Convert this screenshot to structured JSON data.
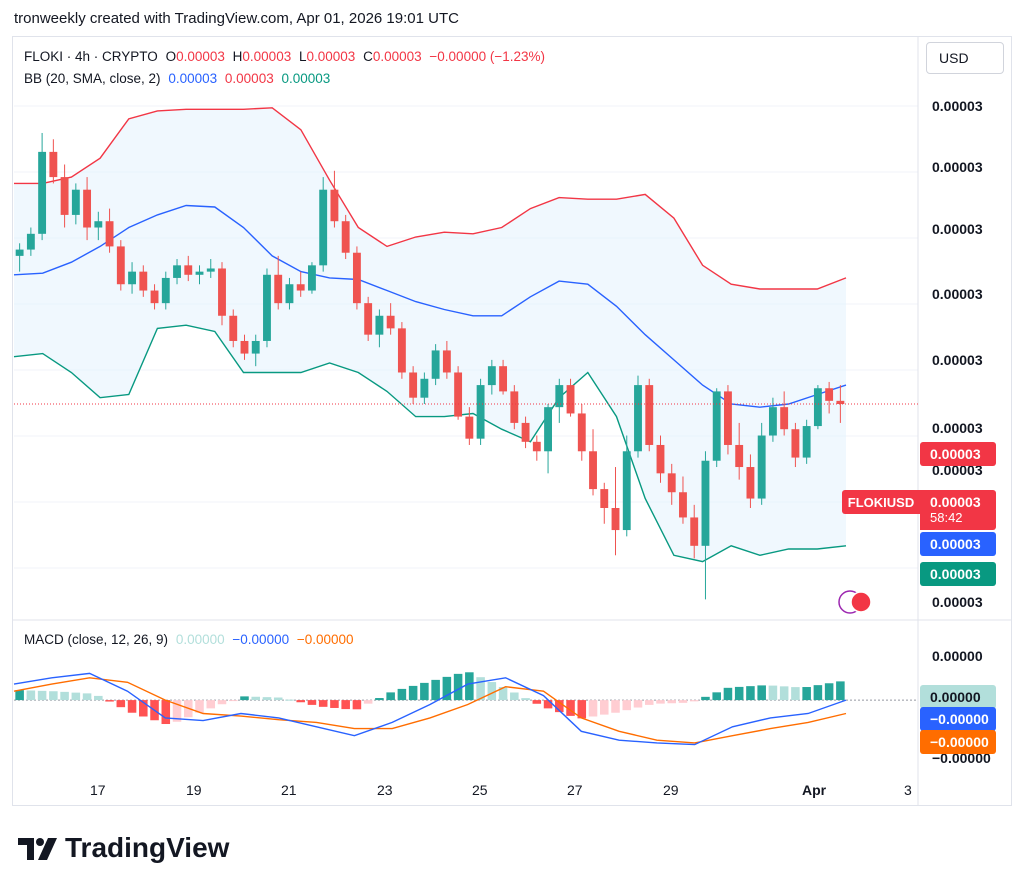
{
  "header": {
    "caption": "tronweekly created with TradingView.com, Apr 01, 2026 19:01 UTC"
  },
  "legend": {
    "symbol": "FLOKI · 4h · CRYPTO",
    "o_label": "O",
    "o_value": "0.00003",
    "h_label": "H",
    "h_value": "0.00003",
    "l_label": "L",
    "l_value": "0.00003",
    "c_label": "C",
    "c_value": "0.00003",
    "change": "−0.00000 (−1.23%)",
    "bb_label": "BB (20, SMA, close, 2)",
    "bb_basis": "0.00003",
    "bb_upper": "0.00003",
    "bb_lower": "0.00003",
    "macd_label": "MACD (close, 12, 26, 9)",
    "macd_hist": "0.00000",
    "macd_line": "−0.00000",
    "macd_signal": "−0.00000"
  },
  "toolbar": {
    "currency": "USD"
  },
  "price_axis": [
    "0.00003",
    "0.00003",
    "0.00003",
    "0.00003",
    "0.00003",
    "0.00003",
    "0.00003",
    "0.00003"
  ],
  "price_tags": {
    "upper": "0.00003",
    "symbol": "FLOKIUSD",
    "last": "0.00003",
    "countdown": "58:42",
    "basis": "0.00003",
    "lower": "0.00003"
  },
  "macd_axis": [
    "0.00000",
    "−0.00000"
  ],
  "macd_tags": {
    "hist": "0.00000",
    "macd": "−0.00000",
    "signal": "−0.00000"
  },
  "time_axis": [
    "17",
    "19",
    "21",
    "23",
    "25",
    "27",
    "29",
    "Apr",
    "3"
  ],
  "brand": {
    "name": "TradingView"
  },
  "colors": {
    "up": "#26a69a",
    "down": "#ef5350",
    "basis": "#2962ff",
    "upper": "#f23645",
    "lower": "#089981",
    "macd": "#2962ff",
    "signal": "#ff6d00",
    "hist_up_strong": "#26a69a",
    "hist_up_weak": "#b2dfdb",
    "hist_down_strong": "#ff5252",
    "hist_down_weak": "#ffcdd2"
  },
  "chart_data": {
    "type": "candlestick",
    "title": "FLOKI · 4h · CRYPTO",
    "x_ticks": [
      "17",
      "19",
      "21",
      "23",
      "25",
      "27",
      "29",
      "Apr",
      "3"
    ],
    "series": [
      {
        "name": "BB upper",
        "values": [
          7e-05,
          7e-05,
          7.2e-05,
          7.8e-05,
          9.05e-05,
          9.3e-05,
          9.35e-05,
          9.35e-05,
          9.35e-05,
          9.4e-05,
          8.7e-05,
          7.1e-05,
          5.6e-05,
          5e-05,
          5.3e-05,
          5.45e-05,
          5.4e-05,
          5.6e-05,
          6.2e-05,
          6.55e-05,
          6.5e-05,
          6.5e-05,
          6.65e-05,
          5.9e-05,
          4.4e-05,
          3.8e-05,
          3.65e-05,
          3.65e-05,
          3.65e-05,
          4e-05
        ]
      },
      {
        "name": "BB basis",
        "values": [
          4.1e-05,
          4.15e-05,
          4.5e-05,
          5e-05,
          5.6e-05,
          6e-05,
          6.3e-05,
          6.25e-05,
          5.6e-05,
          4.7e-05,
          4.2e-05,
          4e-05,
          3.95e-05,
          3.6e-05,
          3.25e-05,
          3e-05,
          2.8e-05,
          2.8e-05,
          3.4e-05,
          3.9e-05,
          3.8e-05,
          3.1e-05,
          2.2e-05,
          1.4e-05,
          6e-06,
          0.0,
          -1e-06,
          0.0,
          3e-06,
          6e-06
        ]
      },
      {
        "name": "BB lower",
        "values": [
          1.5e-05,
          1.6e-05,
          1e-05,
          2e-06,
          3e-06,
          2.4e-05,
          2.5e-05,
          2.3e-05,
          1e-05,
          1e-05,
          1e-05,
          1.3e-05,
          1e-05,
          4e-06,
          -4e-06,
          -4e-06,
          -3e-06,
          -8e-06,
          -1.2e-05,
          2e-06,
          1e-05,
          -4e-06,
          -3e-05,
          -4.8e-05,
          -5e-05,
          -4.5e-05,
          -4.8e-05,
          -4.6e-05,
          -4.6e-05,
          -4.5e-05
        ]
      },
      {
        "name": "MACD",
        "values": [
          1.8e-07,
          2.5e-07,
          3e-07,
          1e-07,
          -2e-07,
          -2.3e-07,
          -1.5e-07,
          -2e-07,
          -3e-07,
          -4e-07,
          -2.5e-07,
          -5e-08,
          1.8e-07,
          2.5e-07,
          5e-08,
          -3.5e-07,
          -4.5e-07,
          -4.8e-07,
          -5e-07,
          -3e-07,
          -2e-07,
          -1.5e-07,
          0.0
        ]
      },
      {
        "name": "Signal",
        "values": [
          1e-07,
          1.8e-07,
          2.5e-07,
          2e-07,
          0.0,
          -1.5e-07,
          -1.8e-07,
          -2.2e-07,
          -2.5e-07,
          -3.2e-07,
          -3.2e-07,
          -2e-07,
          -5e-08,
          1.5e-07,
          1e-07,
          -2e-07,
          -3.5e-07,
          -4.5e-07,
          -4.8e-07,
          -4e-07,
          -3.2e-07,
          -2.5e-07,
          -1.5e-07
        ]
      }
    ],
    "candles": [
      [
        4.7e-05,
        5.1e-05,
        4.2e-05,
        4.9e-05
      ],
      [
        4.9e-05,
        5.6e-05,
        4.7e-05,
        5.4e-05
      ],
      [
        5.4e-05,
        8.6e-05,
        5.2e-05,
        8e-05
      ],
      [
        8e-05,
        8.4e-05,
        7e-05,
        7.2e-05
      ],
      [
        7.2e-05,
        7.6e-05,
        5.6e-05,
        6e-05
      ],
      [
        6e-05,
        7e-05,
        5.7e-05,
        6.8e-05
      ],
      [
        6.8e-05,
        7.2e-05,
        5.2e-05,
        5.6e-05
      ],
      [
        5.6e-05,
        6.1e-05,
        5.2e-05,
        5.8e-05
      ],
      [
        5.8e-05,
        6.2e-05,
        4.8e-05,
        5e-05
      ],
      [
        5e-05,
        5.2e-05,
        3.6e-05,
        3.8e-05
      ],
      [
        3.8e-05,
        4.5e-05,
        3.5e-05,
        4.2e-05
      ],
      [
        4.2e-05,
        4.4e-05,
        3.4e-05,
        3.6e-05
      ],
      [
        3.6e-05,
        3.8e-05,
        3e-05,
        3.2e-05
      ],
      [
        3.2e-05,
        4.2e-05,
        3e-05,
        4e-05
      ],
      [
        4e-05,
        4.6e-05,
        3.8e-05,
        4.4e-05
      ],
      [
        4.4e-05,
        4.7e-05,
        3.9e-05,
        4.1e-05
      ],
      [
        4.1e-05,
        4.4e-05,
        3.8e-05,
        4.2e-05
      ],
      [
        4.2e-05,
        4.6e-05,
        4e-05,
        4.3e-05
      ],
      [
        4.3e-05,
        4.5e-05,
        2.5e-05,
        2.8e-05
      ],
      [
        2.8e-05,
        3e-05,
        1.8e-05,
        2e-05
      ],
      [
        2e-05,
        2.2e-05,
        1.4e-05,
        1.6e-05
      ],
      [
        1.6e-05,
        2.2e-05,
        1.2e-05,
        2e-05
      ],
      [
        2e-05,
        4.3e-05,
        1.8e-05,
        4.1e-05
      ],
      [
        4.1e-05,
        4.7e-05,
        3e-05,
        3.2e-05
      ],
      [
        3.2e-05,
        4e-05,
        3e-05,
        3.8e-05
      ],
      [
        3.8e-05,
        4.2e-05,
        3.4e-05,
        3.6e-05
      ],
      [
        3.6e-05,
        4.5e-05,
        3.5e-05,
        4.4e-05
      ],
      [
        4.4e-05,
        7.2e-05,
        4.2e-05,
        6.8e-05
      ],
      [
        6.8e-05,
        7.4e-05,
        5.6e-05,
        5.8e-05
      ],
      [
        5.8e-05,
        6e-05,
        4.6e-05,
        4.8e-05
      ],
      [
        4.8e-05,
        5e-05,
        3e-05,
        3.2e-05
      ],
      [
        3.2e-05,
        3.4e-05,
        2e-05,
        2.2e-05
      ],
      [
        2.2e-05,
        3e-05,
        1.8e-05,
        2.8e-05
      ],
      [
        2.8e-05,
        3.2e-05,
        2.2e-05,
        2.4e-05
      ],
      [
        2.4e-05,
        2.6e-05,
        8e-06,
        1e-05
      ],
      [
        1e-05,
        1.2e-05,
        0.0,
        2e-06
      ],
      [
        2e-06,
        1e-05,
        0.0,
        8e-06
      ],
      [
        8e-06,
        1.9e-05,
        6e-06,
        1.7e-05
      ],
      [
        1.7e-05,
        2e-05,
        8e-06,
        1e-05
      ],
      [
        1e-05,
        1.2e-05,
        -5e-06,
        -4e-06
      ],
      [
        -4e-06,
        -1e-06,
        -1.3e-05,
        -1.1e-05
      ],
      [
        -1.1e-05,
        8e-06,
        -1.3e-05,
        6e-06
      ],
      [
        6e-06,
        1.4e-05,
        3e-06,
        1.2e-05
      ],
      [
        1.2e-05,
        1.4e-05,
        3e-06,
        4e-06
      ],
      [
        4e-06,
        6e-06,
        -8e-06,
        -6e-06
      ],
      [
        -6e-06,
        -4e-06,
        -1.4e-05,
        -1.2e-05
      ],
      [
        -1.2e-05,
        -1e-05,
        -1.8e-05,
        -1.5e-05
      ],
      [
        -1.5e-05,
        0.0,
        -2.2e-05,
        -1e-06
      ],
      [
        -1e-06,
        8e-06,
        -6e-06,
        6e-06
      ],
      [
        6e-06,
        8e-06,
        -4e-06,
        -3e-06
      ],
      [
        -3e-06,
        0.0,
        -1.8e-05,
        -1.5e-05
      ],
      [
        -1.5e-05,
        -8e-06,
        -2.9e-05,
        -2.7e-05
      ],
      [
        -2.7e-05,
        -2.5e-05,
        -3.8e-05,
        -3.3e-05
      ],
      [
        -3.3e-05,
        -2e-05,
        -4.8e-05,
        -4e-05
      ],
      [
        -4e-05,
        -1e-05,
        -4.2e-05,
        -1.5e-05
      ],
      [
        -1.5e-05,
        9e-06,
        -1.7e-05,
        6e-06
      ],
      [
        6e-06,
        8e-06,
        -1.5e-05,
        -1.3e-05
      ],
      [
        -1.3e-05,
        -1e-05,
        -2.5e-05,
        -2.2e-05
      ],
      [
        -2.2e-05,
        -1.9e-05,
        -3.2e-05,
        -2.8e-05
      ],
      [
        -2.8e-05,
        -2.3e-05,
        -3.8e-05,
        -3.6e-05
      ],
      [
        -3.6e-05,
        -3.2e-05,
        -4.9e-05,
        -4.5e-05
      ],
      [
        -4.5e-05,
        -1.5e-05,
        -6.2e-05,
        -1.8e-05
      ],
      [
        -1.8e-05,
        5e-06,
        -2e-05,
        4e-06
      ],
      [
        4e-06,
        6e-06,
        -1.6e-05,
        -1.3e-05
      ],
      [
        -1.3e-05,
        -6e-06,
        -2.4e-05,
        -2e-05
      ],
      [
        -2e-05,
        -1.6e-05,
        -3.3e-05,
        -3e-05
      ],
      [
        -3e-05,
        -6e-06,
        -3.2e-05,
        -1e-05
      ],
      [
        -1e-05,
        2e-06,
        -1.2e-05,
        -1e-06
      ],
      [
        -1e-06,
        4e-06,
        -1e-05,
        -8e-06
      ],
      [
        -8e-06,
        -6e-06,
        -2e-05,
        -1.7e-05
      ],
      [
        -1.7e-05,
        -5e-06,
        -1.9e-05,
        -7e-06
      ],
      [
        -7e-06,
        6e-06,
        -8e-06,
        5e-06
      ],
      [
        5e-06,
        7e-06,
        -3e-06,
        1e-06
      ],
      [
        1e-06,
        6e-06,
        -6e-06,
        0.0
      ]
    ],
    "candle_fields": [
      "open",
      "high",
      "low",
      "close"
    ],
    "ylim": [
      -6.6e-05,
      9.9e-05
    ],
    "macd_ylim": [
      -6.5e-07,
      4.5e-07
    ]
  }
}
